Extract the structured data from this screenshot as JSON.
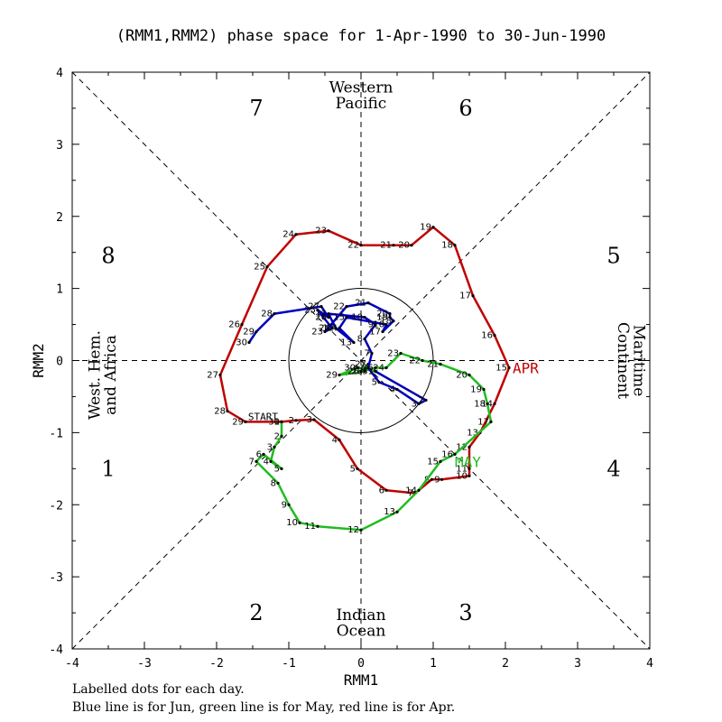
{
  "chart_data": {
    "type": "line",
    "title": "(RMM1,RMM2) phase space for  1-Apr-1990 to 30-Jun-1990",
    "xlabel": "RMM1",
    "ylabel": "RMM2",
    "xlim": [
      -4,
      4
    ],
    "ylim": [
      -4,
      4
    ],
    "xticks": [
      "-4",
      "-3",
      "-2",
      "-1",
      "0",
      "1",
      "2",
      "3",
      "4"
    ],
    "yticks": [
      "-4",
      "-3",
      "-2",
      "-1",
      "0",
      "1",
      "2",
      "3",
      "4"
    ],
    "grid": false,
    "unit_circle_radius": 1,
    "phase_numbers": [
      "1",
      "2",
      "3",
      "4",
      "5",
      "6",
      "7",
      "8"
    ],
    "region_labels": {
      "top": [
        "Western",
        "Pacific"
      ],
      "bottom": [
        "Indian",
        "Ocean"
      ],
      "left": [
        "West. Hem.",
        "and Africa"
      ],
      "right": [
        "Maritime",
        "Continent"
      ]
    },
    "start_label": "START",
    "month_labels": [
      {
        "text": "APR",
        "x": 2.1,
        "y": -0.1,
        "color": "#c00000"
      },
      {
        "text": "MAY",
        "x": 1.3,
        "y": -1.4,
        "color": "#22bb22"
      }
    ],
    "footer": [
      "Labelled dots for each day.",
      "Blue line is for Jun, green line is for May, red line is for Apr."
    ],
    "series": [
      {
        "name": "Apr",
        "color": "#c00000",
        "points": [
          {
            "d": "1",
            "x": -1.1,
            "y": -0.85
          },
          {
            "d": "2",
            "x": -0.9,
            "y": -0.83
          },
          {
            "d": "3",
            "x": -0.65,
            "y": -0.82
          },
          {
            "d": "4",
            "x": -0.3,
            "y": -1.1
          },
          {
            "d": "5",
            "x": -0.05,
            "y": -1.5
          },
          {
            "d": "6",
            "x": 0.35,
            "y": -1.8
          },
          {
            "d": "7",
            "x": 0.75,
            "y": -1.84
          },
          {
            "d": "8",
            "x": 0.98,
            "y": -1.65
          },
          {
            "d": "9",
            "x": 1.12,
            "y": -1.65
          },
          {
            "d": "10",
            "x": 1.5,
            "y": -1.6
          },
          {
            "d": "11",
            "x": 1.5,
            "y": -1.5
          },
          {
            "d": "12",
            "x": 1.5,
            "y": -1.2
          },
          {
            "d": "13",
            "x": 1.65,
            "y": -1.0
          },
          {
            "d": "14",
            "x": 1.85,
            "y": -0.6
          },
          {
            "d": "15",
            "x": 2.05,
            "y": -0.1
          },
          {
            "d": "16",
            "x": 1.85,
            "y": 0.35
          },
          {
            "d": "17",
            "x": 1.55,
            "y": 0.9
          },
          {
            "d": "18",
            "x": 1.3,
            "y": 1.6
          },
          {
            "d": "19",
            "x": 1.0,
            "y": 1.85
          },
          {
            "d": "20",
            "x": 0.7,
            "y": 1.6
          },
          {
            "d": "21",
            "x": 0.45,
            "y": 1.6
          },
          {
            "d": "22",
            "x": 0.0,
            "y": 1.6
          },
          {
            "d": "23",
            "x": -0.45,
            "y": 1.8
          },
          {
            "d": "24",
            "x": -0.9,
            "y": 1.75
          },
          {
            "d": "25",
            "x": -1.3,
            "y": 1.3
          },
          {
            "d": "26",
            "x": -1.65,
            "y": 0.5
          },
          {
            "d": "27",
            "x": -1.95,
            "y": -0.2
          },
          {
            "d": "28",
            "x": -1.85,
            "y": -0.7
          },
          {
            "d": "29",
            "x": -1.6,
            "y": -0.85
          },
          {
            "d": "30",
            "x": -1.1,
            "y": -0.85
          }
        ]
      },
      {
        "name": "May",
        "color": "#22bb22",
        "points": [
          {
            "d": "1",
            "x": -1.1,
            "y": -0.85
          },
          {
            "d": "2",
            "x": -1.1,
            "y": -1.05
          },
          {
            "d": "3",
            "x": -1.2,
            "y": -1.2
          },
          {
            "d": "4",
            "x": -1.25,
            "y": -1.4
          },
          {
            "d": "5",
            "x": -1.1,
            "y": -1.5
          },
          {
            "d": "6",
            "x": -1.35,
            "y": -1.3
          },
          {
            "d": "7",
            "x": -1.45,
            "y": -1.4
          },
          {
            "d": "8",
            "x": -1.15,
            "y": -1.7
          },
          {
            "d": "9",
            "x": -1.0,
            "y": -2.0
          },
          {
            "d": "10",
            "x": -0.85,
            "y": -2.25
          },
          {
            "d": "11",
            "x": -0.6,
            "y": -2.3
          },
          {
            "d": "12",
            "x": 0.0,
            "y": -2.35
          },
          {
            "d": "13",
            "x": 0.5,
            "y": -2.1
          },
          {
            "d": "14",
            "x": 0.8,
            "y": -1.8
          },
          {
            "d": "15",
            "x": 1.1,
            "y": -1.4
          },
          {
            "d": "16",
            "x": 1.3,
            "y": -1.3
          },
          {
            "d": "17",
            "x": 1.8,
            "y": -0.85
          },
          {
            "d": "18",
            "x": 1.75,
            "y": -0.6
          },
          {
            "d": "19",
            "x": 1.7,
            "y": -0.4
          },
          {
            "d": "20",
            "x": 1.5,
            "y": -0.2
          },
          {
            "d": "21",
            "x": 1.1,
            "y": -0.05
          },
          {
            "d": "22",
            "x": 0.85,
            "y": 0.0
          },
          {
            "d": "23",
            "x": 0.55,
            "y": 0.1
          },
          {
            "d": "24",
            "x": 0.35,
            "y": -0.1
          },
          {
            "d": "25",
            "x": 0.2,
            "y": -0.1
          },
          {
            "d": "26",
            "x": 0.0,
            "y": -0.15
          },
          {
            "d": "27",
            "x": 0.1,
            "y": -0.05
          },
          {
            "d": "28",
            "x": 0.05,
            "y": -0.15
          },
          {
            "d": "29",
            "x": -0.3,
            "y": -0.2
          },
          {
            "d": "30",
            "x": -0.05,
            "y": -0.1
          },
          {
            "d": "31",
            "x": 0.2,
            "y": -0.15
          }
        ]
      },
      {
        "name": "Jun",
        "color": "#0000bb",
        "points": [
          {
            "d": "1",
            "x": 0.2,
            "y": -0.15
          },
          {
            "d": "2",
            "x": 0.9,
            "y": -0.55
          },
          {
            "d": "3",
            "x": 0.8,
            "y": -0.6
          },
          {
            "d": "4",
            "x": 0.5,
            "y": -0.4
          },
          {
            "d": "5",
            "x": 0.25,
            "y": -0.3
          },
          {
            "d": "6",
            "x": 0.1,
            "y": -0.1
          },
          {
            "d": "7",
            "x": 0.15,
            "y": 0.1
          },
          {
            "d": "8",
            "x": 0.05,
            "y": 0.3
          },
          {
            "d": "9",
            "x": 0.2,
            "y": 0.5
          },
          {
            "d": "10",
            "x": 0.05,
            "y": 0.6
          },
          {
            "d": "11",
            "x": -0.45,
            "y": 0.65
          },
          {
            "d": "12",
            "x": -0.35,
            "y": 0.45
          },
          {
            "d": "13",
            "x": -0.1,
            "y": 0.25
          },
          {
            "d": "14",
            "x": -0.3,
            "y": 0.45
          },
          {
            "d": "15",
            "x": -0.2,
            "y": 0.6
          },
          {
            "d": "16",
            "x": 0.35,
            "y": 0.5
          },
          {
            "d": "17",
            "x": 0.3,
            "y": 0.4
          },
          {
            "d": "18",
            "x": 0.45,
            "y": 0.55
          },
          {
            "d": "19",
            "x": 0.4,
            "y": 0.6
          },
          {
            "d": "20",
            "x": 0.4,
            "y": 0.65
          },
          {
            "d": "21",
            "x": 0.1,
            "y": 0.8
          },
          {
            "d": "22",
            "x": -0.2,
            "y": 0.75
          },
          {
            "d": "23",
            "x": -0.5,
            "y": 0.4
          },
          {
            "d": "24",
            "x": -0.4,
            "y": 0.45
          },
          {
            "d": "25",
            "x": -0.6,
            "y": 0.7
          },
          {
            "d": "26",
            "x": -0.45,
            "y": 0.6
          },
          {
            "d": "27",
            "x": -0.55,
            "y": 0.75
          },
          {
            "d": "28",
            "x": -1.2,
            "y": 0.65
          },
          {
            "d": "29",
            "x": -1.45,
            "y": 0.4
          },
          {
            "d": "30",
            "x": -1.55,
            "y": 0.25
          }
        ]
      }
    ]
  }
}
